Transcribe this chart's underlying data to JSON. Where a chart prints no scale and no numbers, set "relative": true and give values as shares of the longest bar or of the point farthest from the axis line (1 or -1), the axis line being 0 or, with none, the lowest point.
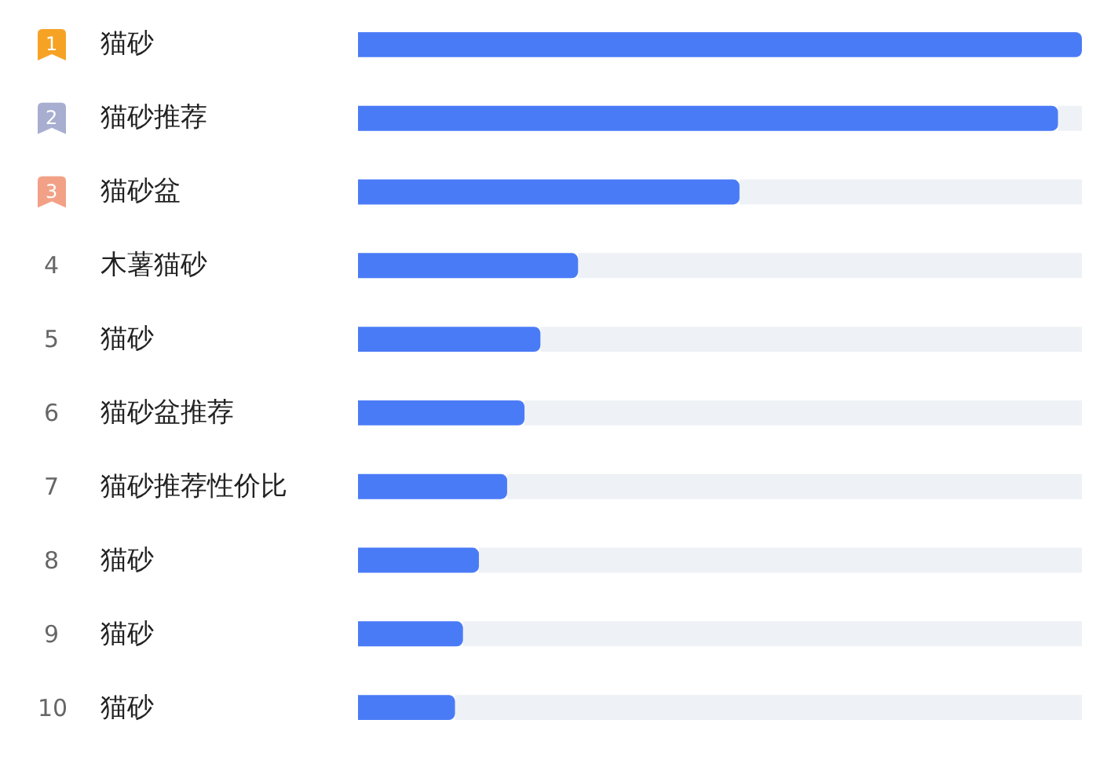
{
  "chart_data": {
    "type": "bar",
    "orientation": "horizontal",
    "relative": true,
    "categories": [
      "猫砂",
      "猫砂推荐",
      "猫砂盆",
      "木薯猫砂",
      "猫砂",
      "猫砂盆推荐",
      "猫砂推荐性价比",
      "猫砂",
      "猫砂",
      "猫砂"
    ],
    "values": [
      1.0,
      0.967,
      0.527,
      0.304,
      0.252,
      0.23,
      0.206,
      0.167,
      0.145,
      0.134
    ],
    "color": "#4a7bf7",
    "annotations": [
      "1",
      "2",
      "3",
      "4",
      "5",
      "6",
      "7",
      "8",
      "9",
      "10"
    ],
    "grid": false,
    "legend": false
  }
}
